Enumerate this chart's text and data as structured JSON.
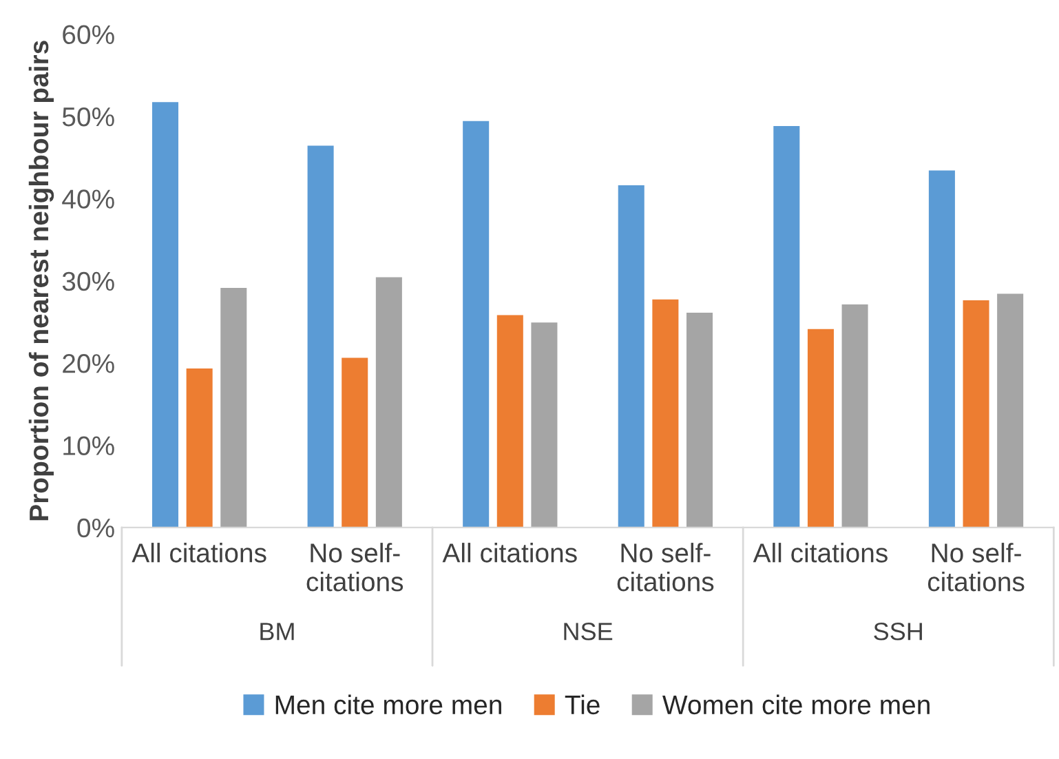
{
  "chart_data": {
    "type": "bar",
    "ylabel": "Proportion of nearest neighbour pairs",
    "categories": [
      "All citations",
      "No self-\ncitations",
      "All citations",
      "No self-\ncitations",
      "All citations",
      "No self-\ncitations"
    ],
    "annotations": [
      "BM",
      "NSE",
      "SSH"
    ],
    "series": [
      {
        "name": "Men cite more men",
        "color": "#5b9bd5",
        "values": [
          51.8,
          46.5,
          49.5,
          41.7,
          48.9,
          43.5
        ]
      },
      {
        "name": "Tie",
        "color": "#ed7d31",
        "values": [
          19.4,
          20.7,
          25.9,
          27.8,
          24.2,
          27.7
        ]
      },
      {
        "name": "Women cite more men",
        "color": "#a5a5a5",
        "values": [
          29.2,
          30.5,
          25.0,
          26.2,
          27.2,
          28.5
        ]
      }
    ],
    "ylim": [
      0,
      60
    ],
    "yticks": [
      {
        "value": 0,
        "label": "0%"
      },
      {
        "value": 10,
        "label": "10%"
      },
      {
        "value": 20,
        "label": "20%"
      },
      {
        "value": 30,
        "label": "30%"
      },
      {
        "value": 40,
        "label": "40%"
      },
      {
        "value": 50,
        "label": "50%"
      },
      {
        "value": 60,
        "label": "60%"
      }
    ],
    "grid": false,
    "legend": "bottom"
  }
}
